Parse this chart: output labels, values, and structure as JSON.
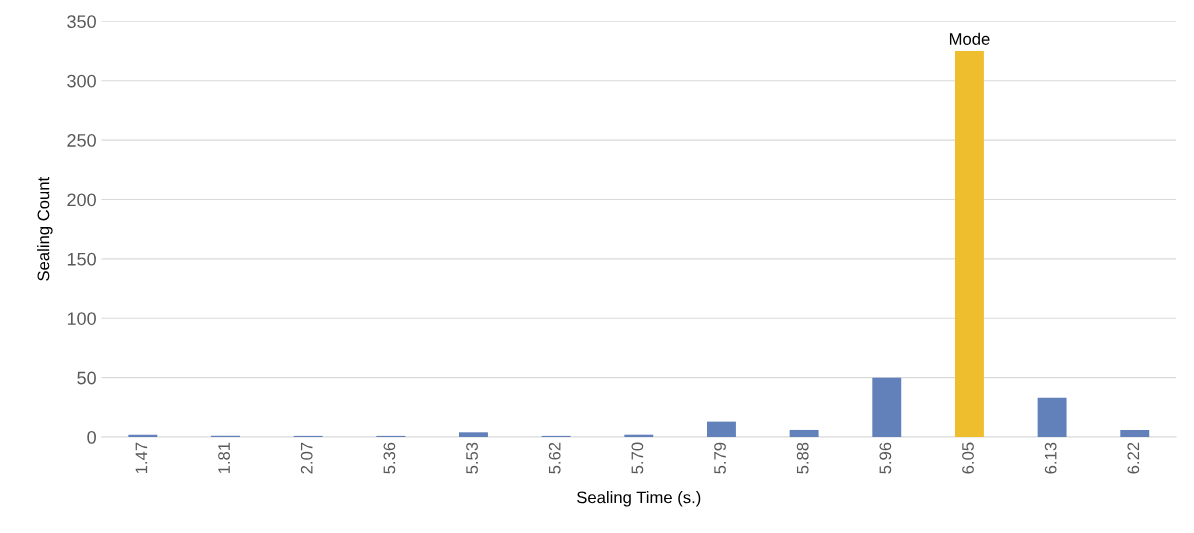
{
  "chart_data": {
    "type": "bar",
    "xlabel": "Sealing Time (s.)",
    "ylabel": "Sealing Count",
    "categories": [
      "1.47",
      "1.81",
      "2.07",
      "5.36",
      "5.53",
      "5.62",
      "5.70",
      "5.79",
      "5.88",
      "5.96",
      "6.05",
      "6.13",
      "6.22"
    ],
    "values": [
      2,
      1,
      1,
      1,
      4,
      1,
      2,
      13,
      6,
      50,
      325,
      33,
      6
    ],
    "colors": [
      "#6281bb",
      "#6281bb",
      "#6281bb",
      "#6281bb",
      "#6281bb",
      "#6281bb",
      "#6281bb",
      "#6281bb",
      "#6281bb",
      "#6281bb",
      "#efbe2f",
      "#6281bb",
      "#6281bb"
    ],
    "ylim": [
      0,
      350
    ],
    "yticks": [
      0,
      50,
      100,
      150,
      200,
      250,
      300,
      350
    ],
    "grid": "y",
    "annotations": [
      {
        "text": "Mode",
        "x": "6.05",
        "y": 325
      }
    ]
  }
}
